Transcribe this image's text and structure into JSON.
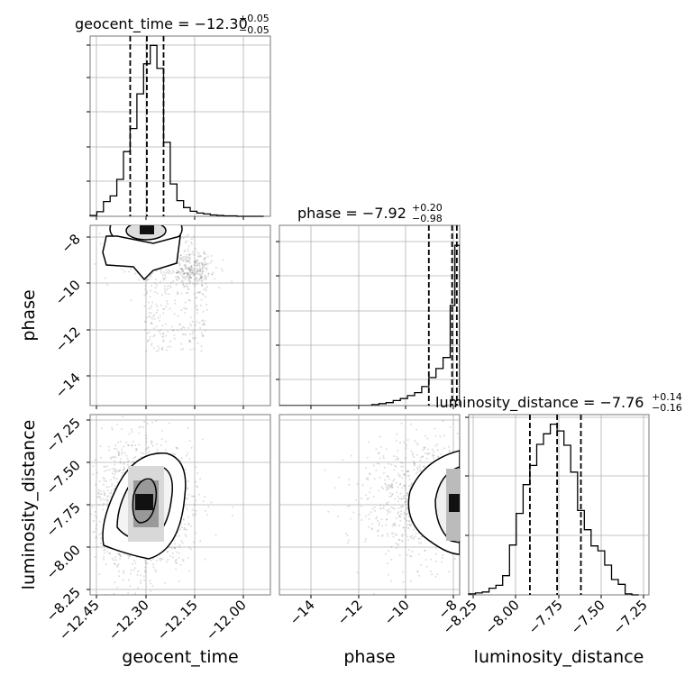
{
  "chart_data": {
    "type": "corner",
    "parameters": [
      "geocent_time",
      "phase",
      "luminosity_distance"
    ],
    "grid": true,
    "panels": {
      "geocent_time": {
        "title": "geocent_time = −12.30",
        "sup": "+0.05",
        "sub": "−0.05",
        "median": -12.3,
        "lo": -12.35,
        "hi": -12.25,
        "xlim": [
          -12.47,
          -11.93
        ],
        "xticks": [
          "−12.45",
          "−12.30",
          "−12.15",
          "−12.00"
        ],
        "xtick_values": [
          -12.45,
          -12.3,
          -12.15,
          -12.0
        ],
        "hist": {
          "edges": [
            -12.47,
            -12.45,
            -12.43,
            -12.41,
            -12.39,
            -12.37,
            -12.35,
            -12.33,
            -12.31,
            -12.29,
            -12.27,
            -12.25,
            -12.23,
            -12.21,
            -12.19,
            -12.17,
            -12.15,
            -12.13,
            -12.11,
            -12.09,
            -12.07,
            -12.05,
            -12.03,
            -12.01,
            -11.99,
            -11.97,
            -11.95
          ],
          "counts": [
            2,
            10,
            32,
            44,
            80,
            140,
            190,
            265,
            330,
            370,
            320,
            160,
            70,
            34,
            19,
            11,
            7,
            5,
            3,
            2,
            1,
            1,
            0,
            0,
            0,
            0
          ]
        }
      },
      "phase": {
        "title": "phase = −7.92",
        "sup": "+0.20",
        "sub": "−0.98",
        "median": -7.92,
        "lo": -8.9,
        "hi": -7.72,
        "xlim": [
          -15.2,
          -7.6
        ],
        "xticks": [
          "−14",
          "−12",
          "−10",
          "−8"
        ],
        "xtick_values": [
          -14,
          -12,
          -10,
          -8
        ],
        "yticks": [
          "−8",
          "−10",
          "−12",
          "−14"
        ],
        "ytick_values": [
          -8,
          -10,
          -12,
          -14
        ],
        "hist": {
          "edges": [
            -15.2,
            -14.9,
            -14.6,
            -14.3,
            -14.0,
            -13.7,
            -13.4,
            -13.1,
            -12.8,
            -12.5,
            -12.2,
            -11.9,
            -11.6,
            -11.3,
            -11.0,
            -10.7,
            -10.4,
            -10.1,
            -9.8,
            -9.5,
            -9.2,
            -8.9,
            -8.6,
            -8.3,
            -8.0,
            -7.8,
            -7.6
          ],
          "counts": [
            0,
            0,
            0,
            0,
            0,
            0,
            0,
            0,
            0,
            0,
            0,
            0,
            0,
            1,
            2,
            3,
            5,
            7,
            10,
            13,
            19,
            28,
            37,
            48,
            100,
            160
          ]
        }
      },
      "luminosity_distance": {
        "title": "luminosity_distance = −7.76",
        "sup": "+0.14",
        "sub": "−0.16",
        "median": -7.76,
        "lo": -7.92,
        "hi": -7.62,
        "xlim": [
          -8.28,
          -7.22
        ],
        "xticks": [
          "−8.25",
          "−8.00",
          "−7.75",
          "−7.50",
          "−7.25"
        ],
        "xtick_values": [
          -8.25,
          -8.0,
          -7.75,
          -7.5,
          -7.25
        ],
        "yticks": [
          "−7.25",
          "−7.50",
          "−7.75",
          "−8.00",
          "−8.25"
        ],
        "ytick_values": [
          -7.25,
          -7.5,
          -7.75,
          -8.0,
          -8.25
        ],
        "hist": {
          "edges": [
            -8.28,
            -8.24,
            -8.2,
            -8.16,
            -8.12,
            -8.08,
            -8.04,
            -8.0,
            -7.96,
            -7.92,
            -7.88,
            -7.84,
            -7.8,
            -7.76,
            -7.72,
            -7.68,
            -7.64,
            -7.6,
            -7.56,
            -7.52,
            -7.48,
            -7.44,
            -7.4,
            -7.36,
            -7.32,
            -7.28
          ],
          "counts": [
            1,
            2,
            3,
            7,
            10,
            20,
            52,
            85,
            115,
            135,
            157,
            168,
            178,
            171,
            156,
            128,
            88,
            68,
            51,
            46,
            31,
            16,
            11,
            1,
            0
          ]
        }
      }
    },
    "scatter_density": {
      "geocent_time_phase": "Posterior samples concentrated near geocent_time −12.30 and phase −8, with a tail toward phase −10 to −13 at geocent_time −12.20 to −12.30",
      "geocent_time_luminosity_distance": "Elliptical concentration around geocent_time −12.31, luminosity_distance −7.76, positively correlated",
      "phase_luminosity_distance": "Samples concentrated at phase near −7.9, luminosity_distance −7.76"
    }
  }
}
